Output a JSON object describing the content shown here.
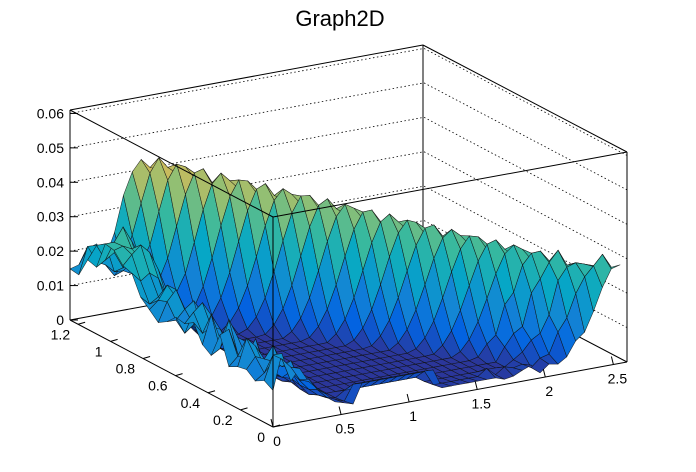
{
  "chart_data": {
    "type": "surface",
    "title": "Graph2D",
    "x_ticks": [
      "0",
      "0.5",
      "1",
      "1.5",
      "2",
      "2.5"
    ],
    "y_ticks": [
      "0",
      "0.2",
      "0.4",
      "0.6",
      "0.8",
      "1",
      "1.2"
    ],
    "z_ticks": [
      "0",
      "0.01",
      "0.02",
      "0.03",
      "0.04",
      "0.05",
      "0.06"
    ],
    "xlim": [
      0,
      2.6
    ],
    "ylim": [
      0,
      1.25
    ],
    "zlim": [
      0,
      0.061
    ],
    "grid": true,
    "colormap": [
      "#352a87",
      "#0363e1",
      "#1485d4",
      "#06a7c6",
      "#38b99e",
      "#92bf73",
      "#d9ba56",
      "#fcce2e",
      "#f9fb0e"
    ],
    "surface": {
      "x_count": 40,
      "y_count": 24,
      "x_range": [
        0,
        2.55
      ],
      "y_range": [
        0,
        1.25
      ],
      "ridge": {
        "name": "diagonal ridge",
        "peak": 0.045,
        "decline_along_x": 0.018
      },
      "front_level": 0.008,
      "back_left_level": 0.012
    }
  }
}
